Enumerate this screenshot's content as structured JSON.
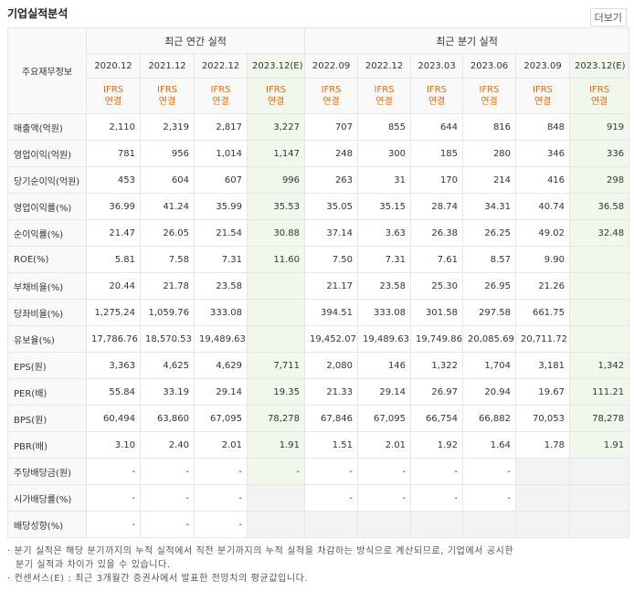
{
  "header": {
    "title": "기업실적분석",
    "more": "더보기"
  },
  "table": {
    "corner": "주요재무정보",
    "groups": [
      "최근 연간 실적",
      "최근 분기 실적"
    ],
    "columns": [
      {
        "period": "2020.12",
        "standard": "IFRS",
        "basis": "연결"
      },
      {
        "period": "2021.12",
        "standard": "IFRS",
        "basis": "연결"
      },
      {
        "period": "2022.12",
        "standard": "IFRS",
        "basis": "연결"
      },
      {
        "period": "2023.12(E)",
        "standard": "IFRS",
        "basis": "연결"
      },
      {
        "period": "2022.09",
        "standard": "IFRS",
        "basis": "연결"
      },
      {
        "period": "2022.12",
        "standard": "IFRS",
        "basis": "연결"
      },
      {
        "period": "2023.03",
        "standard": "IFRS",
        "basis": "연결"
      },
      {
        "period": "2023.06",
        "standard": "IFRS",
        "basis": "연결"
      },
      {
        "period": "2023.09",
        "standard": "IFRS",
        "basis": "연결"
      },
      {
        "period": "2023.12(E)",
        "standard": "IFRS",
        "basis": "연결"
      }
    ],
    "rows": [
      {
        "label": "매출액(억원)",
        "cells": [
          "2,110",
          "2,319",
          "2,817",
          "3,227",
          "707",
          "855",
          "644",
          "816",
          "848",
          "919"
        ]
      },
      {
        "label": "영업이익(억원)",
        "cells": [
          "781",
          "956",
          "1,014",
          "1,147",
          "248",
          "300",
          "185",
          "280",
          "346",
          "336"
        ]
      },
      {
        "label": "당기순이익(억원)",
        "cells": [
          "453",
          "604",
          "607",
          "996",
          "263",
          "31",
          "170",
          "214",
          "416",
          "298"
        ]
      },
      {
        "label": "영업이익률(%)",
        "cells": [
          "36.99",
          "41.24",
          "35.99",
          "35.53",
          "35.05",
          "35.15",
          "28.74",
          "34.31",
          "40.74",
          "36.58"
        ]
      },
      {
        "label": "순이익률(%)",
        "cells": [
          "21.47",
          "26.05",
          "21.54",
          "30.88",
          "37.14",
          "3.63",
          "26.38",
          "26.25",
          "49.02",
          "32.48"
        ]
      },
      {
        "label": "ROE(%)",
        "cells": [
          "5.81",
          "7.58",
          "7.31",
          "11.60",
          "7.50",
          "7.31",
          "7.61",
          "8.57",
          "9.90",
          null
        ]
      },
      {
        "label": "부채비율(%)",
        "cells": [
          "20.44",
          "21.78",
          "23.58",
          null,
          "21.17",
          "23.58",
          "25.30",
          "26.95",
          "21.26",
          null
        ]
      },
      {
        "label": "당좌비율(%)",
        "cells": [
          "1,275.24",
          "1,059.76",
          "333.08",
          null,
          "394.51",
          "333.08",
          "301.58",
          "297.58",
          "661.75",
          null
        ]
      },
      {
        "label": "유보율(%)",
        "cells": [
          "17,786.76",
          "18,570.53",
          "19,489.63",
          null,
          "19,452.07",
          "19,489.63",
          "19,749.86",
          "20,085.69",
          "20,711.72",
          null
        ]
      },
      {
        "label": "EPS(원)",
        "cells": [
          "3,363",
          "4,625",
          "4,629",
          "7,711",
          "2,080",
          "146",
          "1,322",
          "1,704",
          "3,181",
          "1,342"
        ]
      },
      {
        "label": "PER(배)",
        "cells": [
          "55.84",
          "33.19",
          "29.14",
          "19.35",
          "21.33",
          "29.14",
          "26.97",
          "20.94",
          "19.67",
          "111.21"
        ]
      },
      {
        "label": "BPS(원)",
        "cells": [
          "60,494",
          "63,860",
          "67,095",
          "78,278",
          "67,846",
          "67,095",
          "66,754",
          "66,882",
          "70,053",
          "78,278"
        ]
      },
      {
        "label": "PBR(배)",
        "cells": [
          "3.10",
          "2.40",
          "2.01",
          "1.91",
          "1.51",
          "2.01",
          "1.92",
          "1.64",
          "1.78",
          "1.91"
        ]
      },
      {
        "label": "주당배당금(원)",
        "cells": [
          "-",
          "-",
          "-",
          "-",
          "-",
          "-",
          "-",
          "-",
          null,
          null
        ]
      },
      {
        "label": "시가배당률(%)",
        "cells": [
          "-",
          "-",
          "-",
          null,
          "-",
          "-",
          "-",
          "-",
          null,
          null
        ]
      },
      {
        "label": "배당성향(%)",
        "cells": [
          "-",
          "-",
          "-",
          null,
          null,
          null,
          null,
          null,
          null,
          null
        ]
      }
    ]
  },
  "notes": [
    "분기 실적은 해당 분기까지의 누적 실적에서 직전 분기까지의 누적 실적을 차감하는 방식으로 계산되므로, 기업에서 공시한 분기 실적과 차이가 있을 수 있습니다.",
    "컨센서스(E) : 최근 3개월간 증권사에서 발표한 전망치의 평균값입니다."
  ]
}
